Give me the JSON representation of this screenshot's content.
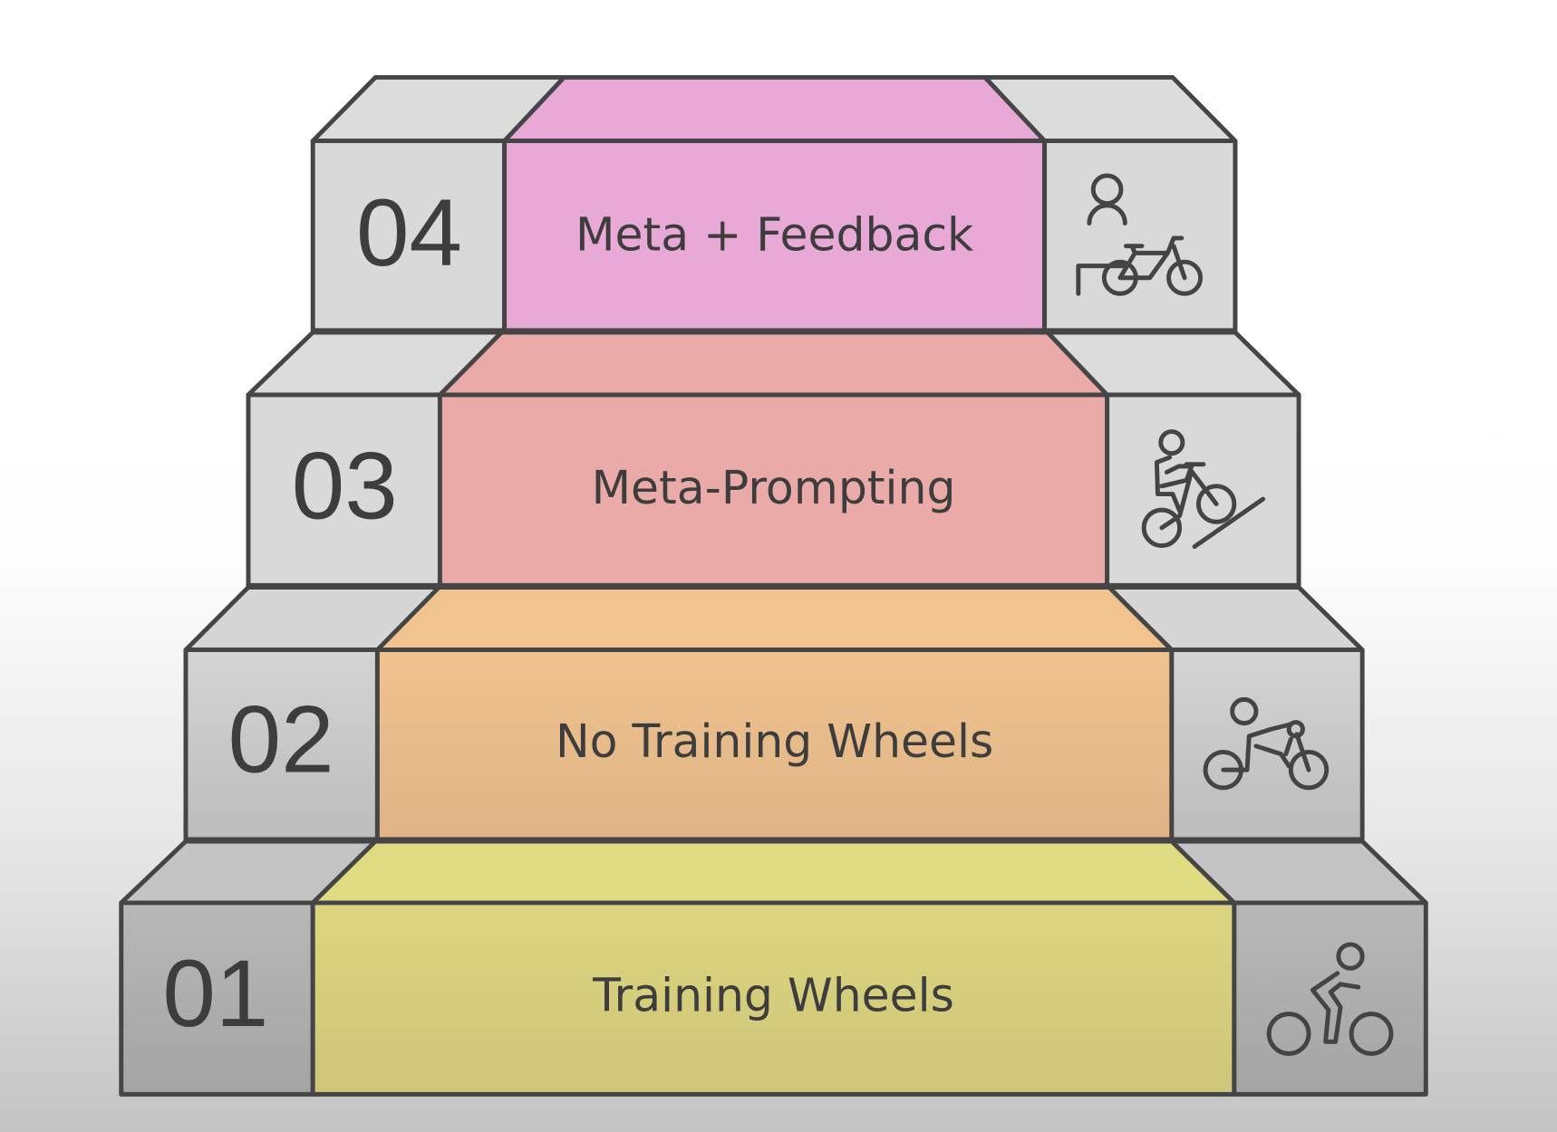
{
  "steps": [
    {
      "number": "01",
      "label": "Training Wheels",
      "color": "#dcd680",
      "icon": "cyclist-icon"
    },
    {
      "number": "02",
      "label": "No Training Wheels",
      "color": "#eebf8c",
      "icon": "racing-cyclist-icon"
    },
    {
      "number": "03",
      "label": "Meta-Prompting",
      "color": "#eaaaa8",
      "icon": "uphill-cyclist-icon"
    },
    {
      "number": "04",
      "label": "Meta + Feedback",
      "color": "#e8a9d6",
      "icon": "instructor-bicycle-icon"
    }
  ],
  "colors": {
    "box": "#d9d9d9",
    "box_dark": "#a9a9a9",
    "outline": "#454545"
  }
}
